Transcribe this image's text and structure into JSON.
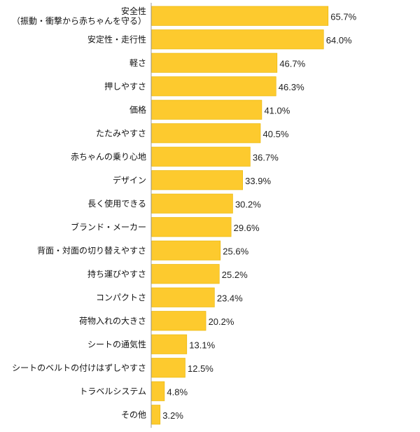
{
  "chart_data": {
    "type": "bar",
    "orientation": "horizontal",
    "categories": [
      [
        "安全性",
        "（振動・衝撃から赤ちゃんを守る）"
      ],
      [
        "安定性・走行性"
      ],
      [
        "軽さ"
      ],
      [
        "押しやすさ"
      ],
      [
        "価格"
      ],
      [
        "たたみやすさ"
      ],
      [
        "赤ちゃんの乗り心地"
      ],
      [
        "デザイン"
      ],
      [
        "長く使用できる"
      ],
      [
        "ブランド・メーカー"
      ],
      [
        "背面・対面の切り替えやすさ"
      ],
      [
        "持ち運びやすさ"
      ],
      [
        "コンパクトさ"
      ],
      [
        "荷物入れの大きさ"
      ],
      [
        "シートの通気性"
      ],
      [
        "シートのベルトの付けはずしやすさ"
      ],
      [
        "トラベルシステム"
      ],
      [
        "その他"
      ]
    ],
    "values": [
      65.7,
      64.0,
      46.7,
      46.3,
      41.0,
      40.5,
      36.7,
      33.9,
      30.2,
      29.6,
      25.6,
      25.2,
      23.4,
      20.2,
      13.1,
      12.5,
      4.8,
      3.2
    ],
    "value_labels": [
      "65.7%",
      "64.0%",
      "46.7%",
      "46.3%",
      "41.0%",
      "40.5%",
      "36.7%",
      "33.9%",
      "30.2%",
      "29.6%",
      "25.6%",
      "25.2%",
      "23.4%",
      "20.2%",
      "13.1%",
      "12.5%",
      "4.8%",
      "3.2%"
    ],
    "xlim": [
      0,
      100
    ],
    "bar_color": "#FDCA2E",
    "bar_edge_color": "#E8B400",
    "axis_color": "#9a9a9a",
    "grid": false,
    "legend": "none"
  }
}
